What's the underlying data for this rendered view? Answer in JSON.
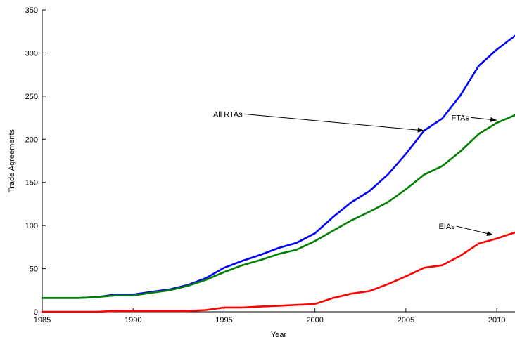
{
  "chart_data": {
    "type": "line",
    "title": "",
    "xlabel": "Year",
    "ylabel": "Trade Agreements",
    "xlim": [
      1985,
      2011
    ],
    "ylim": [
      0,
      350
    ],
    "x_ticks": [
      1985,
      1990,
      1995,
      2000,
      2005,
      2010
    ],
    "y_ticks": [
      0,
      50,
      100,
      150,
      200,
      250,
      300,
      350
    ],
    "grid": false,
    "x": [
      1985,
      1986,
      1987,
      1988,
      1989,
      1990,
      1991,
      1992,
      1993,
      1994,
      1995,
      1996,
      1997,
      1998,
      1999,
      2000,
      2001,
      2002,
      2003,
      2004,
      2005,
      2006,
      2007,
      2008,
      2009,
      2010,
      2011
    ],
    "series": [
      {
        "name": "All RTAs",
        "color": "#0000ff",
        "values": [
          16,
          16,
          16,
          17,
          20,
          20,
          23,
          26,
          31,
          39,
          51,
          59,
          66,
          74,
          80,
          91,
          110,
          127,
          140,
          159,
          183,
          210,
          224,
          251,
          285,
          304,
          320
        ]
      },
      {
        "name": "FTAs",
        "color": "#008000",
        "values": [
          16,
          16,
          16,
          17,
          19,
          19,
          22,
          25,
          30,
          37,
          46,
          54,
          60,
          67,
          72,
          82,
          94,
          106,
          116,
          127,
          142,
          159,
          169,
          186,
          206,
          219,
          228
        ]
      },
      {
        "name": "EIAs",
        "color": "#ff0000",
        "values": [
          0,
          0,
          0,
          0,
          1,
          1,
          1,
          1,
          1,
          2,
          5,
          5,
          6,
          7,
          8,
          9,
          16,
          21,
          24,
          32,
          41,
          51,
          54,
          65,
          79,
          85,
          92
        ]
      }
    ],
    "annotations": [
      {
        "text": "All RTAs",
        "label_at": [
          1994.4,
          226
        ],
        "arrow_to": [
          2006.0,
          210
        ]
      },
      {
        "text": "FTAs",
        "label_at": [
          2007.5,
          222
        ],
        "arrow_to": [
          2010.0,
          222
        ]
      },
      {
        "text": "EIAs",
        "label_at": [
          2006.8,
          96
        ],
        "arrow_to": [
          2009.8,
          89
        ]
      }
    ]
  }
}
